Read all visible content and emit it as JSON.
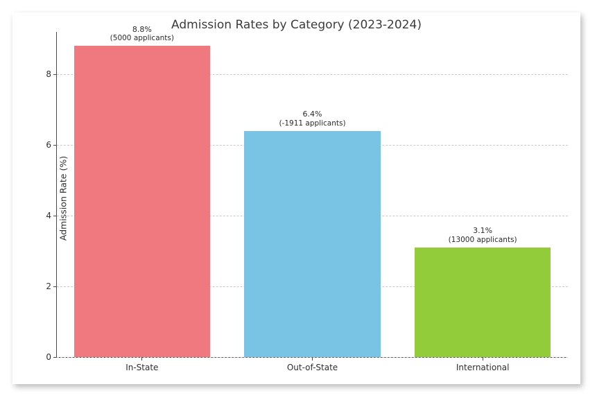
{
  "chart": {
    "type": "bar",
    "title": "Admission Rates by Category (2023-2024)",
    "title_fontsize": 17,
    "title_color": "#3b3b3b",
    "ylabel": "Admission Rate (%)",
    "label_fontsize": 12.5,
    "categories": [
      "In-State",
      "Out-of-State",
      "International"
    ],
    "values": [
      8.8,
      6.4,
      3.1
    ],
    "annotations": [
      {
        "pct": "8.8%",
        "sub": "(5000 applicants)"
      },
      {
        "pct": "6.4%",
        "sub": "(-1911 applicants)"
      },
      {
        "pct": "3.1%",
        "sub": "(13000 applicants)"
      }
    ],
    "bar_colors": [
      "#f0797f",
      "#79c4e5",
      "#93cc3a"
    ],
    "bar_width": 0.8,
    "ylim": [
      0,
      9.2
    ],
    "yticks": [
      0,
      2,
      4,
      6,
      8
    ],
    "background_color": "#ffffff",
    "grid_color": "#c9c9c9",
    "axis_color": "#4a4a4a",
    "tick_label_color": "#2e2e2e",
    "tick_fontsize": 12,
    "annotation_fontsize": 10.5,
    "grid_dash": true
  }
}
